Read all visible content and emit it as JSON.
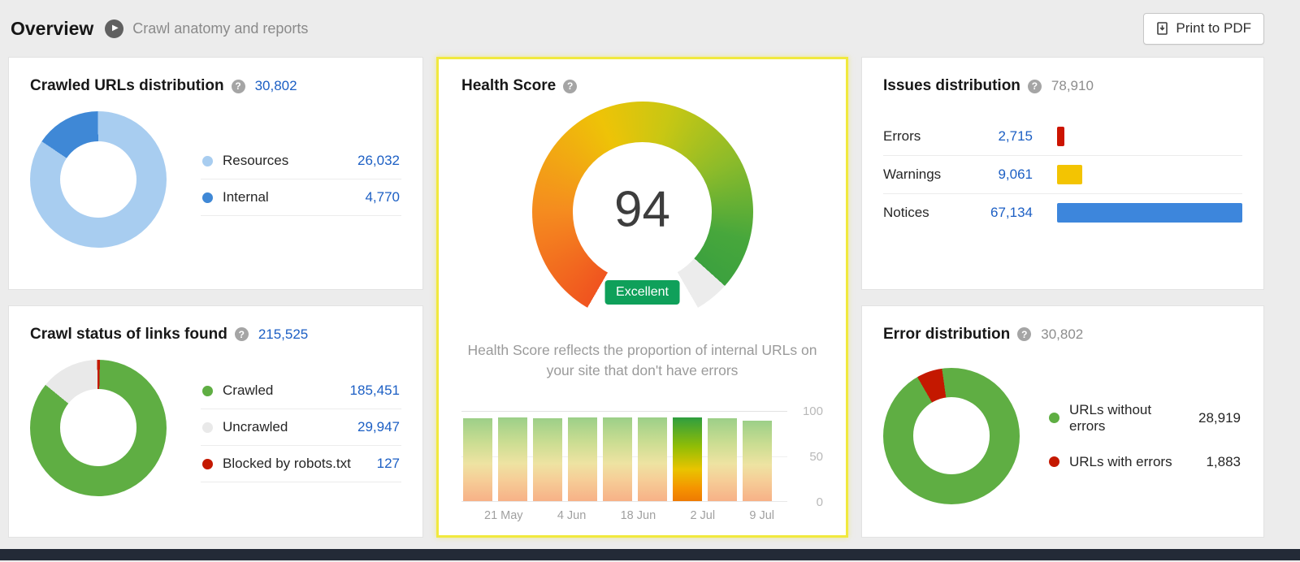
{
  "header": {
    "title": "Overview",
    "subtitle": "Crawl anatomy and reports",
    "print_button_label": "Print to PDF"
  },
  "icons": {
    "help": "?",
    "play": "▶"
  },
  "colors": {
    "link_blue": "#1c5fc4",
    "highlight_yellow": "#f1e93e",
    "badge_green": "#0fa05a",
    "crawled_green": "#5fae43",
    "error_red": "#c41800",
    "resources_light_blue": "#a8cdf0",
    "internal_dark_blue": "#3f88d6",
    "warning_yellow": "#f3c402",
    "notice_blue": "#3d86dc",
    "uncrawled_gray": "#e9e9e9"
  },
  "cards": {
    "crawled_urls": {
      "title": "Crawled URLs distribution",
      "total": "30,802",
      "legend": [
        {
          "label": "Resources",
          "value": "26,032",
          "color": "#a8cdf0"
        },
        {
          "label": "Internal",
          "value": "4,770",
          "color": "#3f88d6"
        }
      ]
    },
    "crawl_status": {
      "title": "Crawl status of links found",
      "total": "215,525",
      "legend": [
        {
          "label": "Crawled",
          "value": "185,451",
          "color": "#5fae43"
        },
        {
          "label": "Uncrawled",
          "value": "29,947",
          "color": "#e9e9e9"
        },
        {
          "label": "Blocked by robots.txt",
          "value": "127",
          "color": "#c41800"
        }
      ]
    },
    "health_score": {
      "title": "Health Score",
      "score": "94",
      "rating": "Excellent",
      "description": "Health Score reflects the proportion of internal URLs on your site that don't have errors",
      "chart": {
        "x_labels": [
          "21 May",
          "4 Jun",
          "18 Jun",
          "2 Jul",
          "9 Jul"
        ],
        "values": [
          93,
          94,
          93,
          94,
          94,
          94,
          94,
          93,
          90
        ],
        "highlight_index": 6,
        "y_ticks": [
          "100",
          "50",
          "0"
        ]
      }
    },
    "issues": {
      "title": "Issues distribution",
      "total": "78,910",
      "rows": [
        {
          "label": "Errors",
          "value": "2,715",
          "color": "#cc1400"
        },
        {
          "label": "Warnings",
          "value": "9,061",
          "color": "#f3c402"
        },
        {
          "label": "Notices",
          "value": "67,134",
          "color": "#3d86dc"
        }
      ]
    },
    "error_distribution": {
      "title": "Error distribution",
      "total": "30,802",
      "legend": [
        {
          "label": "URLs without errors",
          "value": "28,919",
          "color": "#5fae43"
        },
        {
          "label": "URLs with errors",
          "value": "1,883",
          "color": "#c41800"
        }
      ]
    }
  },
  "chart_data": [
    {
      "type": "pie",
      "title": "Crawled URLs distribution",
      "labels": [
        "Resources",
        "Internal"
      ],
      "values": [
        26032,
        4770
      ],
      "colors": [
        "#a8cdf0",
        "#3f88d6"
      ],
      "total": 30802
    },
    {
      "type": "pie",
      "title": "Crawl status of links found",
      "labels": [
        "Crawled",
        "Uncrawled",
        "Blocked by robots.txt"
      ],
      "values": [
        185451,
        29947,
        127
      ],
      "colors": [
        "#5fae43",
        "#e9e9e9",
        "#c41800"
      ],
      "total": 215525
    },
    {
      "type": "gauge",
      "title": "Health Score",
      "value": 94,
      "max": 100,
      "rating": "Excellent"
    },
    {
      "type": "bar",
      "title": "Health Score history",
      "x": [
        "21 May",
        "4 Jun",
        "18 Jun",
        "2 Jul",
        "9 Jul"
      ],
      "values": [
        93,
        94,
        93,
        94,
        94,
        94,
        94,
        93,
        90
      ],
      "ylim": [
        0,
        100
      ],
      "yticks": [
        0,
        50,
        100
      ],
      "legend_position": "none"
    },
    {
      "type": "bar",
      "title": "Issues distribution",
      "categories": [
        "Errors",
        "Warnings",
        "Notices"
      ],
      "values": [
        2715,
        9061,
        67134
      ],
      "colors": [
        "#cc1400",
        "#f3c402",
        "#3d86dc"
      ],
      "total": 78910
    },
    {
      "type": "pie",
      "title": "Error distribution",
      "labels": [
        "URLs without errors",
        "URLs with errors"
      ],
      "values": [
        28919,
        1883
      ],
      "colors": [
        "#5fae43",
        "#c41800"
      ],
      "total": 30802
    }
  ]
}
